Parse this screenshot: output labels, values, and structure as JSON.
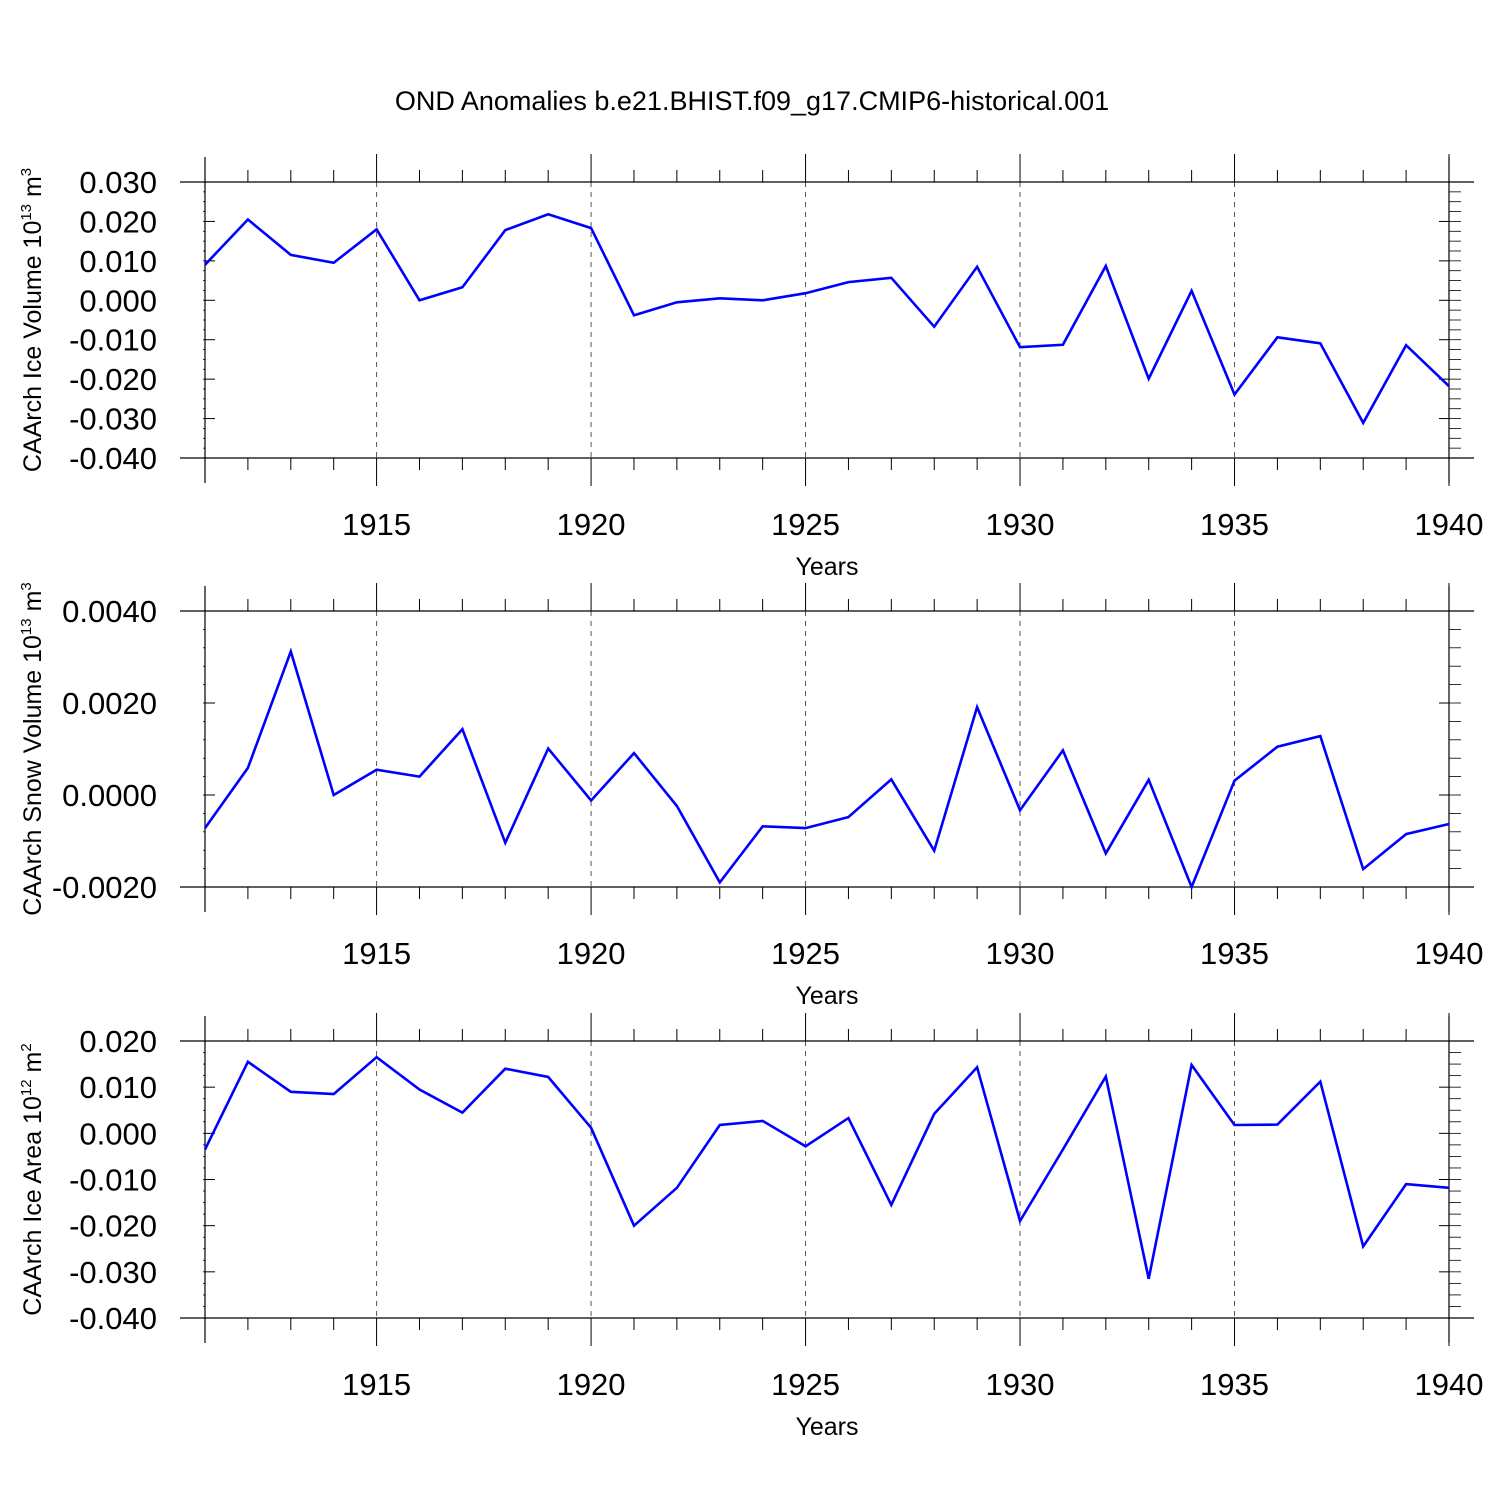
{
  "title": "OND Anomalies b.e21.BHIST.f09_g17.CMIP6-historical.001",
  "colors": {
    "series": "#0000ff",
    "axis": "#000000",
    "grid": "#555555"
  },
  "chart_data": [
    {
      "type": "line",
      "ylabel_prefix": "CAArch Ice Volume 10",
      "ylabel_exp": "13",
      "ylabel_unit": " m",
      "ylabel_unit_exp": "3",
      "xlabel": "Years",
      "xlim": [
        1911,
        1940
      ],
      "ylim": [
        -0.04,
        0.03
      ],
      "yticks": [
        0.03,
        0.02,
        0.01,
        0.0,
        -0.01,
        -0.02,
        -0.03,
        -0.04
      ],
      "ytick_labels": [
        "0.030",
        "0.020",
        "0.010",
        "0.000",
        "-0.010",
        "-0.020",
        "-0.030",
        "-0.040"
      ],
      "xticks": [
        1915,
        1920,
        1925,
        1930,
        1935,
        1940
      ],
      "xtick_labels": [
        "1915",
        "1920",
        "1925",
        "1930",
        "1935",
        "1940"
      ],
      "grid": "vertical dashed at labeled years",
      "x": [
        1911,
        1912,
        1913,
        1914,
        1915,
        1916,
        1917,
        1918,
        1919,
        1920,
        1921,
        1922,
        1923,
        1924,
        1925,
        1926,
        1927,
        1928,
        1929,
        1930,
        1931,
        1932,
        1933,
        1934,
        1935,
        1936,
        1937,
        1938,
        1939,
        1940
      ],
      "series": [
        {
          "values": [
            0.009,
            0.0205,
            0.0115,
            0.0095,
            0.018,
            0.0,
            0.0033,
            0.0178,
            0.0218,
            0.0183,
            -0.0038,
            -0.0005,
            0.0005,
            0.0,
            0.0018,
            0.0046,
            0.0057,
            -0.0067,
            0.0085,
            -0.0119,
            -0.0113,
            0.0087,
            -0.0199,
            0.0024,
            -0.0239,
            -0.0094,
            -0.0109,
            -0.0311,
            -0.0114,
            -0.0218
          ]
        }
      ]
    },
    {
      "type": "line",
      "ylabel_prefix": "CAArch Snow Volume 10",
      "ylabel_exp": "13",
      "ylabel_unit": " m",
      "ylabel_unit_exp": "3",
      "xlabel": "Years",
      "xlim": [
        1911,
        1940
      ],
      "ylim": [
        -0.002,
        0.004
      ],
      "yticks": [
        0.004,
        0.002,
        0.0,
        -0.002
      ],
      "ytick_labels": [
        "0.0040",
        "0.0020",
        "0.0000",
        "-0.0020"
      ],
      "xticks": [
        1915,
        1920,
        1925,
        1930,
        1935,
        1940
      ],
      "xtick_labels": [
        "1915",
        "1920",
        "1925",
        "1930",
        "1935",
        "1940"
      ],
      "grid": "vertical dashed at labeled years",
      "x": [
        1911,
        1912,
        1913,
        1914,
        1915,
        1916,
        1917,
        1918,
        1919,
        1920,
        1921,
        1922,
        1923,
        1924,
        1925,
        1926,
        1927,
        1928,
        1929,
        1930,
        1931,
        1932,
        1933,
        1934,
        1935,
        1936,
        1937,
        1938,
        1939,
        1940
      ],
      "series": [
        {
          "values": [
            -0.00072,
            0.00059,
            0.00312,
            0.0,
            0.00055,
            0.0004,
            0.00143,
            -0.00104,
            0.00101,
            -0.00012,
            0.00091,
            -0.00024,
            -0.0019,
            -0.00068,
            -0.00072,
            -0.00048,
            0.00034,
            -0.00121,
            0.00191,
            -0.00033,
            0.00097,
            -0.00127,
            0.00033,
            -0.002,
            0.00031,
            0.00105,
            0.00128,
            -0.00161,
            -0.00085,
            -0.00063
          ]
        }
      ]
    },
    {
      "type": "line",
      "ylabel_prefix": "CAArch Ice Area 10",
      "ylabel_exp": "12",
      "ylabel_unit": " m",
      "ylabel_unit_exp": "2",
      "xlabel": "Years",
      "xlim": [
        1911,
        1940
      ],
      "ylim": [
        -0.04,
        0.02
      ],
      "yticks": [
        0.02,
        0.01,
        0.0,
        -0.01,
        -0.02,
        -0.03,
        -0.04
      ],
      "ytick_labels": [
        "0.020",
        "0.010",
        "0.000",
        "-0.010",
        "-0.020",
        "-0.030",
        "-0.040"
      ],
      "xticks": [
        1915,
        1920,
        1925,
        1930,
        1935,
        1940
      ],
      "xtick_labels": [
        "1915",
        "1920",
        "1925",
        "1930",
        "1935",
        "1940"
      ],
      "grid": "vertical dashed at labeled years",
      "x": [
        1911,
        1912,
        1913,
        1914,
        1915,
        1916,
        1917,
        1918,
        1919,
        1920,
        1921,
        1922,
        1923,
        1924,
        1925,
        1926,
        1927,
        1928,
        1929,
        1930,
        1931,
        1932,
        1933,
        1934,
        1935,
        1936,
        1937,
        1938,
        1939,
        1940
      ],
      "series": [
        {
          "values": [
            -0.0035,
            0.0155,
            0.009,
            0.0085,
            0.0165,
            0.0095,
            0.0045,
            0.014,
            0.0122,
            0.0012,
            -0.02,
            -0.0118,
            0.0018,
            0.0027,
            -0.0028,
            0.0033,
            -0.0155,
            0.0042,
            0.0143,
            -0.019,
            -0.0035,
            0.0123,
            -0.0315,
            0.0148,
            0.0018,
            0.0019,
            0.0112,
            -0.0245,
            -0.011,
            -0.0118
          ]
        }
      ]
    }
  ]
}
